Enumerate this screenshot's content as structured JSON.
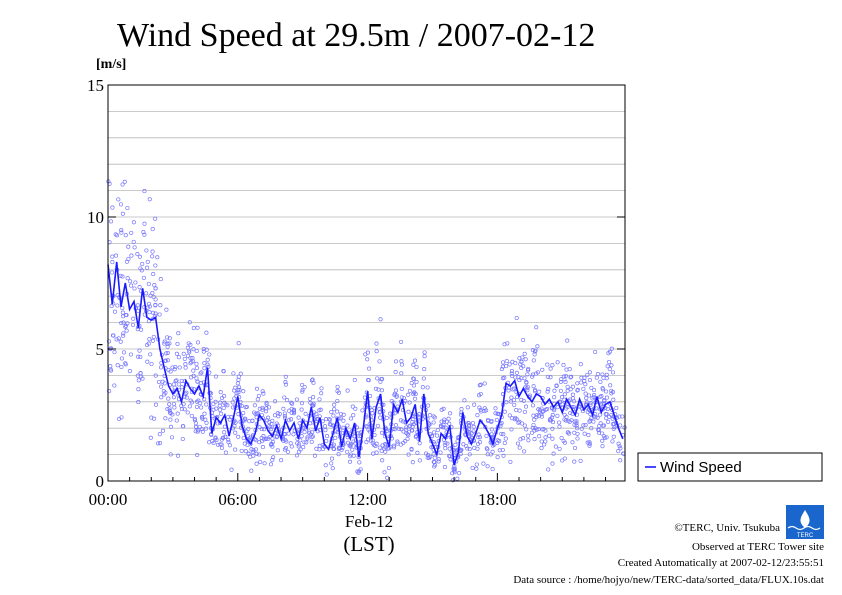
{
  "chart_data": {
    "type": "line+scatter",
    "title": "Wind Speed at 29.5m / 2007-02-12",
    "ylabel": "[m/s]",
    "xlabel": "Feb-12",
    "xlabel2": "(LST)",
    "xlim": [
      0,
      23.9
    ],
    "ylim": [
      0,
      15
    ],
    "x_ticks": [
      0,
      6,
      12,
      18
    ],
    "x_tick_labels": [
      "00:00",
      "06:00",
      "12:00",
      "18:00"
    ],
    "y_ticks": [
      0,
      5,
      10,
      15
    ],
    "y_tick_labels": [
      "0",
      "5",
      "10",
      "15"
    ],
    "grid": true,
    "legend": "right",
    "series": [
      {
        "name": "Wind Speed",
        "color": "#1a1aff",
        "scatter_color": "#7777ff",
        "x": [
          0.0,
          0.2,
          0.4,
          0.6,
          0.8,
          1.0,
          1.2,
          1.4,
          1.6,
          1.8,
          2.0,
          2.2,
          2.4,
          2.6,
          2.8,
          3.0,
          3.2,
          3.4,
          3.6,
          3.8,
          4.0,
          4.2,
          4.4,
          4.6,
          4.8,
          5.0,
          5.2,
          5.4,
          5.6,
          5.8,
          6.0,
          6.2,
          6.4,
          6.6,
          6.8,
          7.0,
          7.2,
          7.4,
          7.6,
          7.8,
          8.0,
          8.2,
          8.4,
          8.6,
          8.8,
          9.0,
          9.2,
          9.4,
          9.6,
          9.8,
          10.0,
          10.2,
          10.4,
          10.6,
          10.8,
          11.0,
          11.2,
          11.4,
          11.6,
          11.8,
          12.0,
          12.2,
          12.4,
          12.6,
          12.8,
          13.0,
          13.2,
          13.4,
          13.6,
          13.8,
          14.0,
          14.2,
          14.4,
          14.6,
          14.8,
          15.0,
          15.2,
          15.4,
          15.6,
          15.8,
          16.0,
          16.2,
          16.4,
          16.6,
          16.8,
          17.0,
          17.2,
          17.4,
          17.6,
          17.8,
          18.0,
          18.2,
          18.4,
          18.6,
          18.8,
          19.0,
          19.2,
          19.4,
          19.6,
          19.8,
          20.0,
          20.2,
          20.4,
          20.6,
          20.8,
          21.0,
          21.2,
          21.4,
          21.6,
          21.8,
          22.0,
          22.2,
          22.4,
          22.6,
          22.8,
          23.0,
          23.2,
          23.4,
          23.6,
          23.8
        ],
        "y": [
          8.2,
          6.7,
          8.3,
          6.6,
          7.5,
          6.5,
          6.8,
          5.8,
          7.3,
          6.2,
          6.1,
          6.2,
          5.0,
          4.3,
          3.6,
          3.3,
          3.5,
          3.0,
          3.8,
          3.5,
          3.3,
          3.6,
          3.2,
          4.3,
          1.8,
          2.4,
          2.2,
          2.5,
          1.7,
          2.4,
          3.2,
          2.1,
          1.6,
          1.4,
          1.8,
          2.5,
          2.3,
          1.9,
          1.7,
          2.1,
          1.6,
          2.3,
          1.9,
          2.2,
          1.6,
          2.3,
          2.0,
          2.8,
          1.9,
          2.4,
          1.4,
          1.2,
          1.8,
          2.4,
          1.3,
          2.0,
          1.6,
          2.2,
          0.9,
          2.0,
          3.4,
          1.6,
          2.8,
          3.3,
          1.8,
          1.3,
          2.9,
          2.6,
          3.1,
          2.2,
          2.4,
          2.9,
          1.5,
          3.3,
          1.8,
          1.4,
          1.0,
          1.8,
          1.6,
          2.1,
          0.6,
          1.1,
          2.6,
          1.7,
          1.4,
          1.8,
          2.3,
          2.1,
          1.8,
          1.4,
          2.0,
          2.5,
          3.7,
          3.6,
          3.8,
          3.2,
          3.5,
          3.2,
          3.0,
          3.3,
          3.2,
          2.9,
          3.1,
          2.8,
          3.0,
          2.6,
          3.1,
          2.8,
          2.5,
          3.1,
          2.7,
          2.9,
          2.5,
          3.2,
          2.6,
          2.9,
          3.0,
          2.5,
          2.0,
          1.6
        ]
      }
    ]
  },
  "credits": {
    "copyright": "©TERC, Univ. Tsukuba",
    "observed": "Observed at TERC Tower site",
    "created": "Created Automatically at 2007-02-12/23:55:51",
    "source": "Data source : /home/hojyo/new/TERC-data/sorted_data/FLUX.10s.dat",
    "logo_text": "TERC",
    "logo_color": "#1a66cc"
  }
}
